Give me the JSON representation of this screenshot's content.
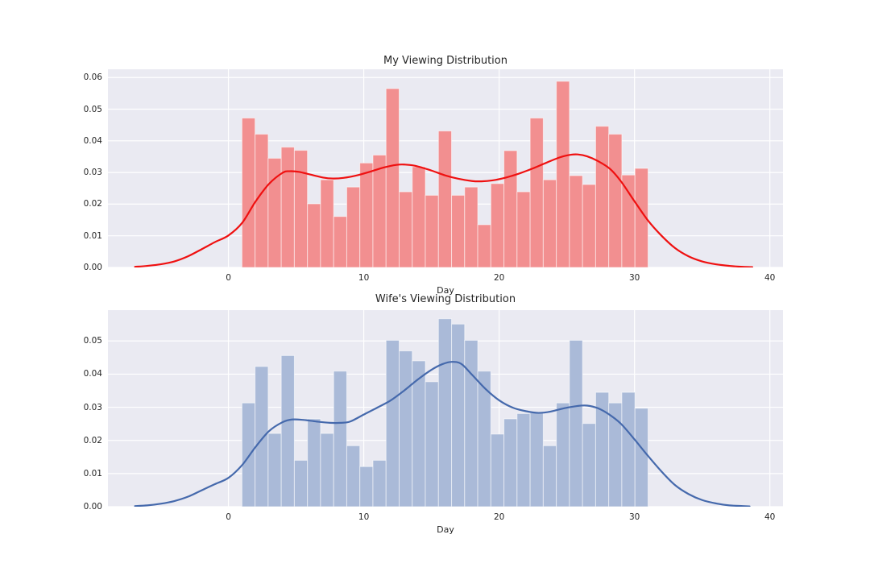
{
  "figure": {
    "background": "#ffffff",
    "plot_background": "#eaeaf2",
    "grid_color": "#ffffff",
    "text_color": "#262626"
  },
  "chart_data": [
    {
      "type": "histogram",
      "kde_overlay": "line",
      "title": "My Viewing Distribution",
      "xlabel": "Day",
      "bar_color": "#f28f90",
      "bar_edge_color": "rgba(255,255,255,0.55)",
      "line_color": "#ef1010",
      "x_tick_days": [
        0,
        10,
        20,
        30,
        40
      ],
      "x_tick_labels": [
        "0",
        "10",
        "20",
        "30",
        "40"
      ],
      "y_tick_labels": [
        "0.00",
        "0.01",
        "0.02",
        "0.03",
        "0.04",
        "0.05",
        "0.06"
      ],
      "xlim": [
        -8.9,
        40.97
      ],
      "ylim": [
        0,
        0.0626
      ],
      "bin_start": 1,
      "bin_end": 31,
      "bar_values": [
        0.0472,
        0.0421,
        0.0345,
        0.038,
        0.037,
        0.0201,
        0.0277,
        0.0161,
        0.0254,
        0.033,
        0.0355,
        0.0565,
        0.0239,
        0.0318,
        0.0228,
        0.0431,
        0.0228,
        0.0254,
        0.0135,
        0.0265,
        0.0369,
        0.0239,
        0.0472,
        0.0277,
        0.0588,
        0.029,
        0.0262,
        0.0446,
        0.0421,
        0.0292,
        0.0313
      ],
      "kde_points": [
        [
          -6.9,
          0.0002
        ],
        [
          -6,
          0.0005
        ],
        [
          -5,
          0.001
        ],
        [
          -4,
          0.0019
        ],
        [
          -3,
          0.0035
        ],
        [
          -2,
          0.0057
        ],
        [
          -1,
          0.008
        ],
        [
          0,
          0.0101
        ],
        [
          1,
          0.014
        ],
        [
          2,
          0.0208
        ],
        [
          3,
          0.0264
        ],
        [
          4,
          0.0299
        ],
        [
          4.5,
          0.0304
        ],
        [
          5.2,
          0.0302
        ],
        [
          6,
          0.0294
        ],
        [
          7,
          0.0284
        ],
        [
          7.7,
          0.0281
        ],
        [
          8.5,
          0.0283
        ],
        [
          9.5,
          0.0291
        ],
        [
          10.5,
          0.0303
        ],
        [
          11.5,
          0.0316
        ],
        [
          12.4,
          0.0324
        ],
        [
          13,
          0.0325
        ],
        [
          13.8,
          0.0321
        ],
        [
          15,
          0.0306
        ],
        [
          16,
          0.0291
        ],
        [
          17,
          0.028
        ],
        [
          18,
          0.0273
        ],
        [
          18.7,
          0.0272
        ],
        [
          19.5,
          0.0275
        ],
        [
          20.5,
          0.0284
        ],
        [
          21.5,
          0.0297
        ],
        [
          22.5,
          0.0313
        ],
        [
          23.5,
          0.0331
        ],
        [
          24.5,
          0.0348
        ],
        [
          25.3,
          0.0356
        ],
        [
          25.8,
          0.0357
        ],
        [
          26.5,
          0.0351
        ],
        [
          27.3,
          0.0336
        ],
        [
          28.2,
          0.0311
        ],
        [
          29,
          0.0272
        ],
        [
          30,
          0.0209
        ],
        [
          31,
          0.0148
        ],
        [
          32,
          0.01
        ],
        [
          33,
          0.0061
        ],
        [
          34,
          0.0035
        ],
        [
          35,
          0.0019
        ],
        [
          36,
          0.001
        ],
        [
          37,
          0.0005
        ],
        [
          38,
          0.0002
        ],
        [
          38.7,
          0.0001
        ]
      ]
    },
    {
      "type": "histogram",
      "kde_overlay": "line",
      "title": "Wife's Viewing Distribution",
      "xlabel": "Day",
      "bar_color": "#aabad8",
      "bar_edge_color": "rgba(255,255,255,0.55)",
      "line_color": "#4569ac",
      "x_tick_days": [
        0,
        10,
        20,
        30,
        40
      ],
      "x_tick_labels": [
        "0",
        "10",
        "20",
        "30",
        "40"
      ],
      "y_tick_labels": [
        "0.00",
        "0.01",
        "0.02",
        "0.03",
        "0.04",
        "0.05"
      ],
      "xlim": [
        -8.9,
        40.97
      ],
      "ylim": [
        0,
        0.0593
      ],
      "bin_start": 1,
      "bin_end": 31,
      "bar_values": [
        0.0313,
        0.0423,
        0.0221,
        0.0456,
        0.014,
        0.0265,
        0.0221,
        0.0409,
        0.0184,
        0.0121,
        0.014,
        0.0502,
        0.047,
        0.044,
        0.0377,
        0.0567,
        0.0551,
        0.0502,
        0.0409,
        0.0219,
        0.0265,
        0.0281,
        0.0283,
        0.0184,
        0.0313,
        0.0502,
        0.0251,
        0.0345,
        0.0313,
        0.0345,
        0.0297
      ],
      "kde_points": [
        [
          -6.9,
          0.0002
        ],
        [
          -6,
          0.0004
        ],
        [
          -5,
          0.0009
        ],
        [
          -4,
          0.0017
        ],
        [
          -3,
          0.003
        ],
        [
          -2,
          0.0049
        ],
        [
          -1,
          0.0068
        ],
        [
          0,
          0.0087
        ],
        [
          1,
          0.0125
        ],
        [
          2,
          0.018
        ],
        [
          3,
          0.0228
        ],
        [
          4,
          0.0255
        ],
        [
          4.7,
          0.0263
        ],
        [
          5.5,
          0.0262
        ],
        [
          6.5,
          0.0257
        ],
        [
          7.5,
          0.0253
        ],
        [
          8.3,
          0.0253
        ],
        [
          9,
          0.0257
        ],
        [
          10,
          0.0278
        ],
        [
          11,
          0.0299
        ],
        [
          12,
          0.0321
        ],
        [
          13,
          0.0351
        ],
        [
          14,
          0.0384
        ],
        [
          15,
          0.0413
        ],
        [
          15.8,
          0.043
        ],
        [
          16.5,
          0.0437
        ],
        [
          17.2,
          0.0431
        ],
        [
          18,
          0.0398
        ],
        [
          19,
          0.0355
        ],
        [
          20,
          0.0321
        ],
        [
          21,
          0.0299
        ],
        [
          22,
          0.0288
        ],
        [
          22.9,
          0.0283
        ],
        [
          23.8,
          0.0287
        ],
        [
          24.8,
          0.0297
        ],
        [
          25.8,
          0.0304
        ],
        [
          26.5,
          0.0305
        ],
        [
          27.3,
          0.0297
        ],
        [
          28.1,
          0.0279
        ],
        [
          29,
          0.025
        ],
        [
          30,
          0.0203
        ],
        [
          30.9,
          0.0158
        ],
        [
          32,
          0.0106
        ],
        [
          33,
          0.0065
        ],
        [
          34,
          0.0038
        ],
        [
          35,
          0.002
        ],
        [
          36,
          0.001
        ],
        [
          37,
          0.0004
        ],
        [
          38,
          0.0002
        ],
        [
          38.5,
          0.0001
        ]
      ]
    }
  ]
}
